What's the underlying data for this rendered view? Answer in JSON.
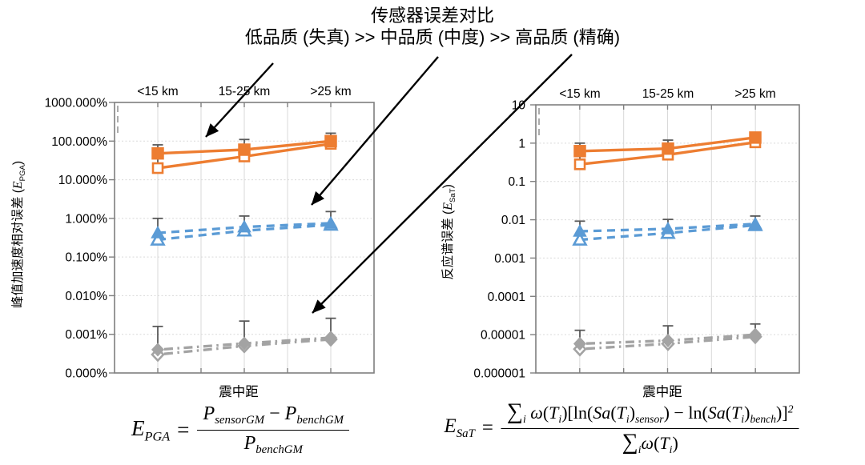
{
  "page": {
    "title_line1": "传感器误差对比",
    "title_line2": "低品质 (失真) >> 中品质 (中度) >> 高品质 (精确)"
  },
  "colors": {
    "low_quality_orange": "#ED7D31",
    "mid_quality_blue": "#5B9BD5",
    "high_quality_gray": "#A3A3A3",
    "error_bar": "#595959",
    "gridline": "#D9D9D9",
    "axis_border": "#7F7F7F",
    "arrow": "#000000"
  },
  "chart_data": [
    {
      "id": "epga",
      "type": "line",
      "y_scale": "log",
      "ylabel_tokens": {
        "prefix": "峰值加速度相对误差 (",
        "var": "E",
        "sub": "PGA",
        "suffix": ")"
      },
      "xlabel": "震中距",
      "categories": [
        "<15 km",
        "15-25 km",
        ">25 km"
      ],
      "ylim": [
        0.0001,
        1000
      ],
      "ytick_labels": [
        "1000.000%",
        "100.000%",
        "10.000%",
        "1.000%",
        "0.100%",
        "0.010%",
        "0.001%",
        "0.000%"
      ],
      "ytick_values": [
        1000,
        100,
        10,
        1,
        0.1,
        0.01,
        0.001,
        0.0001
      ],
      "grid": true,
      "legend": "none",
      "series": [
        {
          "name": "低品质(失真)-实心方块",
          "color": "#ED7D31",
          "line": "solid",
          "marker": "square",
          "filled": true,
          "values": [
            48,
            60,
            100
          ],
          "err_top": [
            80,
            110,
            160
          ],
          "err_bot": [
            15,
            34,
            70
          ]
        },
        {
          "name": "低品质(失真)-空心方块",
          "color": "#ED7D31",
          "line": "solid",
          "marker": "square",
          "filled": false,
          "values": [
            20,
            40,
            85
          ]
        },
        {
          "name": "中品质(中度)-实心三角",
          "color": "#5B9BD5",
          "line": "dashed",
          "marker": "triangle",
          "filled": true,
          "values": [
            0.42,
            0.6,
            0.75
          ],
          "err_top": [
            1.0,
            1.15,
            1.5
          ],
          "err_bot": [
            0.24,
            0.4,
            0.55
          ]
        },
        {
          "name": "中品质(中度)-空心三角",
          "color": "#5B9BD5",
          "line": "dashed",
          "marker": "triangle",
          "filled": false,
          "values": [
            0.28,
            0.48,
            0.68
          ]
        },
        {
          "name": "高品质(精确)-实心菱形",
          "color": "#A3A3A3",
          "line": "dashdot",
          "marker": "diamond",
          "filled": true,
          "values": [
            0.0004,
            0.00058,
            0.00082
          ],
          "err_top": [
            0.0016,
            0.0022,
            0.0026
          ],
          "err_bot": [
            0.00026,
            0.00044,
            0.00064
          ]
        },
        {
          "name": "高品质(精确)-空心菱形",
          "color": "#A3A3A3",
          "line": "dashdot",
          "marker": "diamond",
          "filled": false,
          "values": [
            0.0003,
            0.0005,
            0.00074
          ]
        }
      ]
    },
    {
      "id": "esat",
      "type": "line",
      "y_scale": "log",
      "ylabel_tokens": {
        "prefix": "反应谱误差 (",
        "var": "E",
        "sub": "SaT",
        "suffix": ")"
      },
      "xlabel": "震中距",
      "categories": [
        "<15 km",
        "15-25 km",
        ">25 km"
      ],
      "ylim": [
        1e-06,
        10
      ],
      "ytick_labels": [
        "10",
        "1",
        "0.1",
        "0.01",
        "0.001",
        "0.0001",
        "0.00001",
        "0.000001"
      ],
      "ytick_values": [
        10,
        1,
        0.1,
        0.01,
        0.001,
        0.0001,
        1e-05,
        1e-06
      ],
      "grid": true,
      "legend": "none",
      "series": [
        {
          "name": "低品质(失真)-实心方块",
          "color": "#ED7D31",
          "line": "solid",
          "marker": "square",
          "filled": true,
          "values": [
            0.62,
            0.72,
            1.4
          ],
          "err_top": [
            1.0,
            1.2,
            1.9
          ],
          "err_bot": [
            0.22,
            0.44,
            0.9
          ]
        },
        {
          "name": "低品质(失真)-空心方块",
          "color": "#ED7D31",
          "line": "solid",
          "marker": "square",
          "filled": false,
          "values": [
            0.28,
            0.5,
            1.05
          ]
        },
        {
          "name": "中品质(中度)-实心三角",
          "color": "#5B9BD5",
          "line": "dashed",
          "marker": "triangle",
          "filled": true,
          "values": [
            0.005,
            0.0058,
            0.0078
          ],
          "err_top": [
            0.0092,
            0.0102,
            0.0125
          ],
          "err_bot": [
            0.0026,
            0.004,
            0.006
          ]
        },
        {
          "name": "中品质(中度)-空心三角",
          "color": "#5B9BD5",
          "line": "dashed",
          "marker": "triangle",
          "filled": false,
          "values": [
            0.003,
            0.0045,
            0.0072
          ]
        },
        {
          "name": "高品质(精确)-实心菱形",
          "color": "#A3A3A3",
          "line": "dashdot",
          "marker": "diamond",
          "filled": true,
          "values": [
            5.8e-06,
            7e-06,
            1e-05
          ],
          "err_top": [
            1.3e-05,
            1.7e-05,
            1.9e-05
          ],
          "err_bot": [
            3.8e-06,
            5.2e-06,
            7.8e-06
          ]
        },
        {
          "name": "高品质(精确)-空心菱形",
          "color": "#A3A3A3",
          "line": "dashdot",
          "marker": "diamond",
          "filled": false,
          "values": [
            4.2e-06,
            5.8e-06,
            8.8e-06
          ]
        }
      ]
    }
  ],
  "formulas": {
    "pga": {
      "lhs": "E",
      "lhs_sub": "PGA",
      "eq": "=",
      "num": [
        {
          "t": "P"
        },
        {
          "sub": "sensorGM"
        },
        {
          "t": " − ",
          "i": false
        },
        {
          "t": "P"
        },
        {
          "sub": "benchGM"
        }
      ],
      "den": [
        {
          "t": "P"
        },
        {
          "sub": "benchGM"
        }
      ]
    },
    "sat": {
      "lhs": "E",
      "lhs_sub": "SaT",
      "eq": "=",
      "num": [
        {
          "t": "∑",
          "i": false,
          "big": true
        },
        {
          "sub": "i"
        },
        {
          "t": " "
        },
        {
          "t": "ω"
        },
        {
          "t": "(",
          "i": false
        },
        {
          "t": "T"
        },
        {
          "sub": "i"
        },
        {
          "t": ")[ln(",
          "i": false
        },
        {
          "t": "Sa"
        },
        {
          "t": "(",
          "i": false
        },
        {
          "t": "T"
        },
        {
          "sub": "i"
        },
        {
          "t": ")",
          "i": false
        },
        {
          "sub": "sensor"
        },
        {
          "t": ") − ln(",
          "i": false
        },
        {
          "t": "Sa"
        },
        {
          "t": "(",
          "i": false
        },
        {
          "t": "T"
        },
        {
          "sub": "i"
        },
        {
          "t": ")",
          "i": false
        },
        {
          "sub": "bench"
        },
        {
          "t": ")]",
          "i": false
        },
        {
          "sup": "2"
        }
      ],
      "den": [
        {
          "t": "∑",
          "i": false,
          "big": true
        },
        {
          "sub": "i"
        },
        {
          "t": "ω"
        },
        {
          "t": "(",
          "i": false
        },
        {
          "t": "T"
        },
        {
          "sub": "i"
        },
        {
          "t": ")",
          "i": false
        }
      ]
    }
  }
}
